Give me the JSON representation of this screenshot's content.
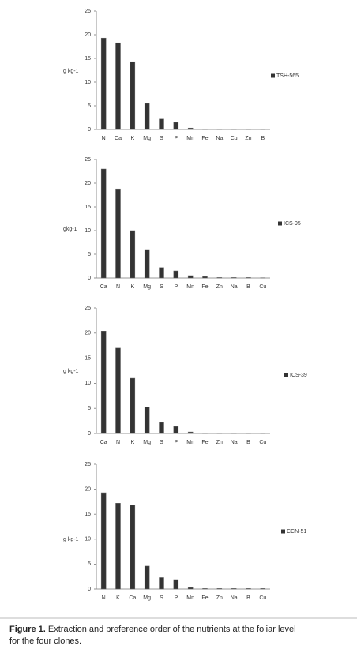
{
  "chart_data": [
    {
      "type": "bar",
      "ylabel": "g kg-1",
      "categories": [
        "N",
        "Ca",
        "K",
        "Mg",
        "S",
        "P",
        "Mn",
        "Fe",
        "Na",
        "Cu",
        "Zn",
        "B"
      ],
      "series": [
        {
          "name": "TSH-565",
          "color": "#333333",
          "values": [
            19.3,
            18.3,
            14.3,
            5.5,
            2.2,
            1.5,
            0.3,
            0.1,
            0.05,
            0.02,
            0.02,
            0.01
          ]
        }
      ],
      "ylim": [
        0,
        25
      ],
      "yticks": [
        0,
        5,
        10,
        15,
        20,
        25
      ],
      "legend": "right"
    },
    {
      "type": "bar",
      "ylabel": "gkg-1",
      "categories": [
        "Ca",
        "N",
        "K",
        "Mg",
        "S",
        "P",
        "Mn",
        "Fe",
        "Zn",
        "Na",
        "B",
        "Cu"
      ],
      "series": [
        {
          "name": "ICS-95",
          "color": "#333333",
          "values": [
            23,
            18.8,
            10,
            6,
            2.2,
            1.5,
            0.5,
            0.3,
            0.1,
            0.1,
            0.1,
            0.05
          ]
        }
      ],
      "ylim": [
        0,
        25
      ],
      "yticks": [
        0,
        5,
        10,
        15,
        20,
        25
      ],
      "legend": "right"
    },
    {
      "type": "bar",
      "ylabel": "g kg-1",
      "categories": [
        "Ca",
        "N",
        "K",
        "Mg",
        "S",
        "P",
        "Mn",
        "Fe",
        "Zn",
        "Na",
        "B",
        "Cu"
      ],
      "series": [
        {
          "name": "ICS-39",
          "color": "#333333",
          "values": [
            20.4,
            17,
            11,
            5.3,
            2.2,
            1.4,
            0.3,
            0.1,
            0.02,
            0.02,
            0.01,
            0.01
          ]
        }
      ],
      "ylim": [
        0,
        25
      ],
      "yticks": [
        0,
        5,
        10,
        15,
        20,
        25
      ],
      "legend": "right"
    },
    {
      "type": "bar",
      "ylabel": "g kg-1",
      "categories": [
        "N",
        "K",
        "Ca",
        "Mg",
        "S",
        "P",
        "Mn",
        "Fe",
        "Zn",
        "Na",
        "B",
        "Cu"
      ],
      "series": [
        {
          "name": "CCN-51",
          "color": "#333333",
          "values": [
            19.3,
            17.2,
            16.8,
            4.6,
            2.3,
            1.9,
            0.3,
            0.1,
            0.1,
            0.1,
            0.1,
            0.1
          ]
        }
      ],
      "ylim": [
        0,
        25
      ],
      "yticks": [
        0,
        5,
        10,
        15,
        20,
        25
      ],
      "legend": "right"
    }
  ],
  "caption": {
    "label": "Figure 1.",
    "text": "Extraction and preference order of the nutrients at the foliar level",
    "text2": "for the four clones."
  }
}
